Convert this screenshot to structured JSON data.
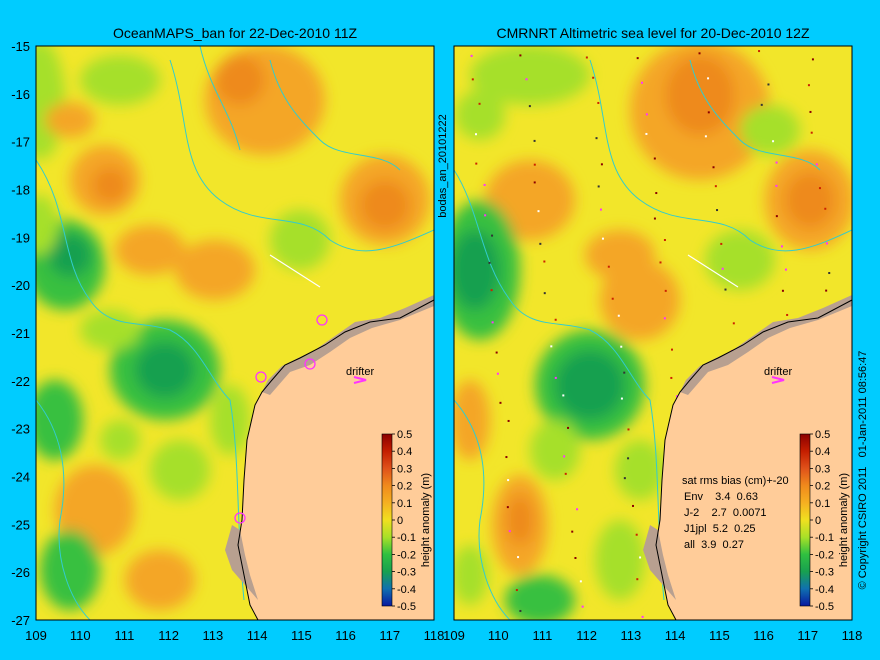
{
  "titles": {
    "left": "OceanMAPS_ban for 22-Dec-2010 11Z",
    "right": "CMRNRT Altimetric sea level  for 20-Dec-2010 12Z"
  },
  "axes": {
    "x_ticks": [
      "109",
      "110",
      "111",
      "112",
      "113",
      "114",
      "115",
      "116",
      "117",
      "118"
    ],
    "y_ticks": [
      "-15",
      "-16",
      "-17",
      "-18",
      "-19",
      "-20",
      "-21",
      "-22",
      "-23",
      "-24",
      "-25",
      "-26",
      "-27"
    ],
    "x_range": [
      109,
      118
    ],
    "y_range": [
      -27,
      -15
    ]
  },
  "colorbar": {
    "label": "height anomaly (m)",
    "ticks": [
      "0.5",
      "0.4",
      "0.3",
      "0.2",
      "0.1",
      "0",
      "-0.1",
      "-0.2",
      "-0.3",
      "-0.4",
      "-0.5"
    ],
    "colors": [
      "#8b0000",
      "#c41e00",
      "#e0521a",
      "#f08a1c",
      "#f5b021",
      "#f0e020",
      "#a8e028",
      "#30c040",
      "#18a050",
      "#1070b0",
      "#0818a0"
    ]
  },
  "labels": {
    "drifter": "drifter",
    "middle_vertical": "bodas_an_20101222",
    "right_vertical": "© Copyright CSIRO 2011   01-Jan-2011 08:56:47"
  },
  "stats": {
    "header": "sat rms bias (cm)+-20",
    "rows": [
      "Env    3.4  0.63",
      "J-2    2.7  0.0071",
      "J1jpl  5.2  0.25",
      "all  3.9  0.27"
    ]
  },
  "colors": {
    "frame_bg": "#00ccff",
    "land": "#ffcc99",
    "coast_shelf": "#b8a090",
    "field_base": "#f2e62a",
    "orange": "#f4a628",
    "light_green": "#a6e02a",
    "green": "#38c040",
    "deep_green": "#18a050",
    "isobath": "#33cccc",
    "marker": "#ff33ff"
  }
}
